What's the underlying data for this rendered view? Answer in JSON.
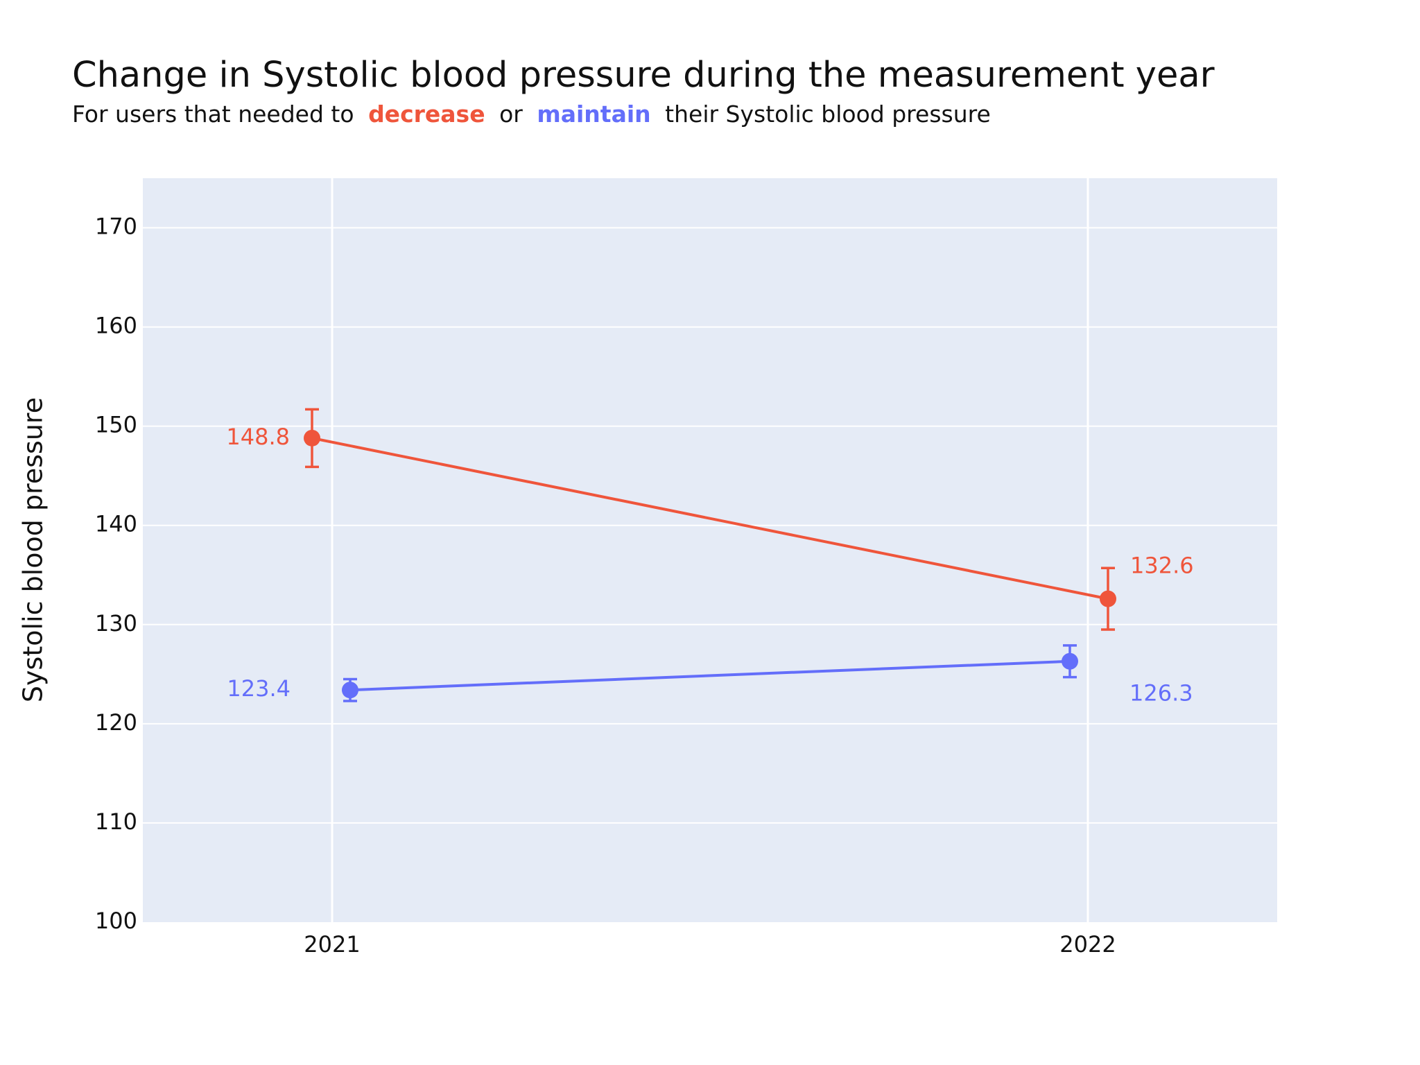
{
  "chart_data": {
    "type": "line",
    "title": "Change in Systolic blood pressure during the measurement year",
    "subtitle": [
      "For users that needed to",
      "decrease",
      "or",
      "maintain",
      "their Systolic blood pressure"
    ],
    "y_label": "Systolic blood pressure",
    "categories": [
      "2021",
      "2022"
    ],
    "series": [
      {
        "name": "decrease",
        "color": "#ef553b",
        "values": [
          148.8,
          132.6
        ],
        "errors": [
          2.9,
          3.1
        ]
      },
      {
        "name": "maintain",
        "color": "#636efa",
        "values": [
          123.4,
          126.3
        ],
        "errors": [
          1.1,
          1.6
        ]
      }
    ],
    "ylim": [
      100,
      175
    ],
    "yticks": [
      100,
      110,
      120,
      130,
      140,
      150,
      160,
      170
    ],
    "grid": true
  }
}
